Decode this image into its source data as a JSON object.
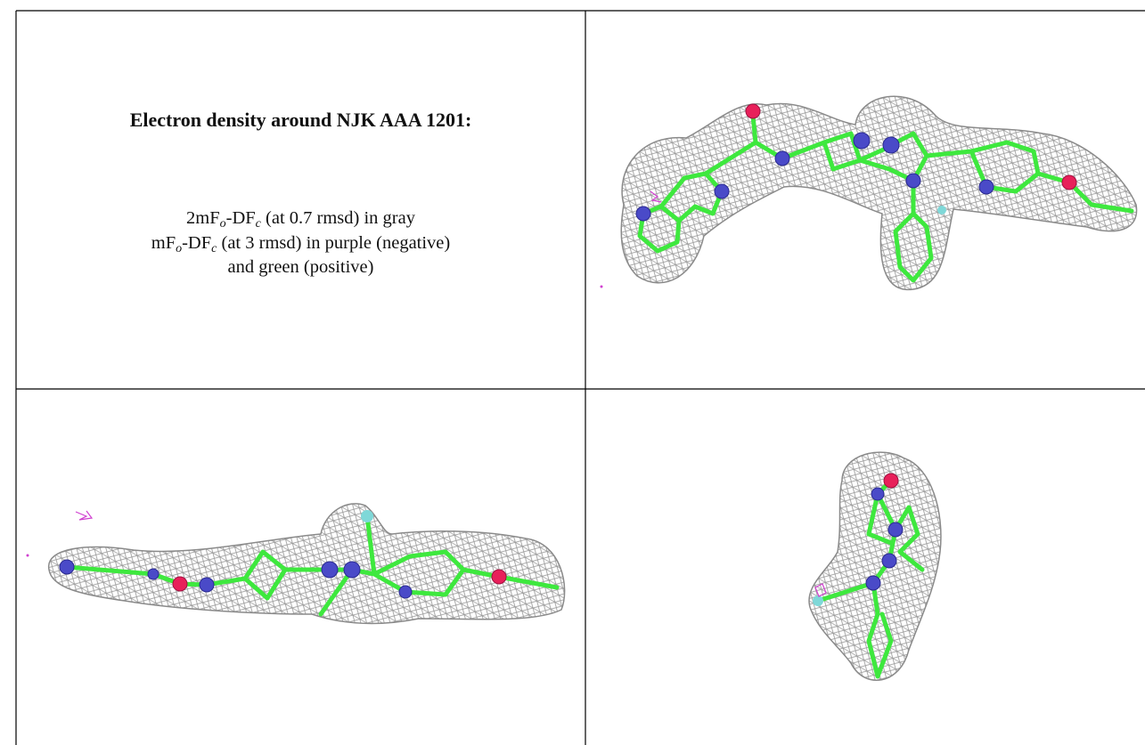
{
  "panel": {
    "title": "Electron density around NJK AAA 1201:",
    "lines": [
      [
        "2mF",
        "o",
        "-DF",
        "c",
        " (at 0.7 rmsd) in gray"
      ],
      [
        "mF",
        "o",
        "-DF",
        "c",
        " (at 3 rmsd) in purple (negative)"
      ],
      [
        "and green (positive)"
      ]
    ]
  }
}
